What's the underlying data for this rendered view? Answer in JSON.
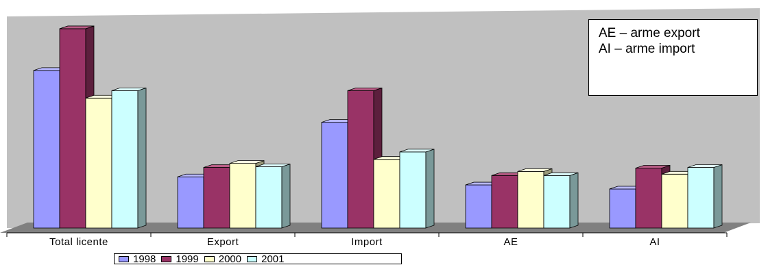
{
  "chart_data": {
    "type": "bar",
    "categories": [
      "Total licente",
      "Export",
      "Import",
      "AE",
      "AI"
    ],
    "series": [
      {
        "name": "1998",
        "values": [
          234,
          76,
          157,
          64,
          58
        ]
      },
      {
        "name": "1999",
        "values": [
          296,
          90,
          204,
          78,
          89
        ]
      },
      {
        "name": "2000",
        "values": [
          193,
          96,
          102,
          84,
          80
        ]
      },
      {
        "name": "2001",
        "values": [
          204,
          91,
          113,
          78,
          90
        ]
      }
    ],
    "colors": [
      "#9999ff",
      "#993366",
      "#ffffcc",
      "#ccffff"
    ],
    "side_colors": [
      "#5c5c99",
      "#5c1f3d",
      "#99997a",
      "#7a9999"
    ],
    "top_colors": [
      "#b8b8ff",
      "#b85c85",
      "#ffffe0",
      "#e0ffff"
    ],
    "ylim": [
      0,
      300
    ],
    "grid": false,
    "legend_position": "bottom",
    "wall_color": "#c0c0c0",
    "floor_color": "#808080",
    "annotation_lines": [
      "AE – arme export",
      "AI – arme import"
    ]
  }
}
